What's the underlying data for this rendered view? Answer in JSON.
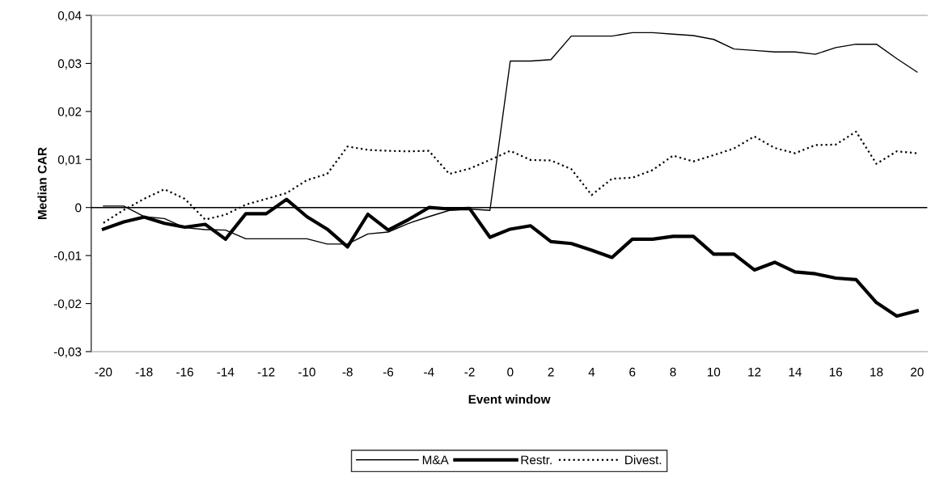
{
  "chart_data": {
    "type": "line",
    "xlabel": "Event window",
    "ylabel": "Median CAR",
    "x": [
      -20,
      -19,
      -18,
      -17,
      -16,
      -15,
      -14,
      -13,
      -12,
      -11,
      -10,
      -9,
      -8,
      -7,
      -6,
      -5,
      -4,
      -3,
      -2,
      -1,
      0,
      1,
      2,
      3,
      4,
      5,
      6,
      7,
      8,
      9,
      10,
      11,
      12,
      13,
      14,
      15,
      16,
      17,
      18,
      19,
      20
    ],
    "series": [
      {
        "name": "M&A",
        "color": "#000000",
        "line_style": "solid",
        "values": [
          0.0003,
          0.0003,
          -0.0019,
          -0.0023,
          -0.0042,
          -0.0046,
          -0.0047,
          -0.0065,
          -0.0065,
          -0.0065,
          -0.0065,
          -0.0076,
          -0.0076,
          -0.0055,
          -0.0051,
          -0.0033,
          -0.0019,
          -0.0006,
          -0.0003,
          -0.0006,
          0.0305,
          0.0305,
          0.0308,
          0.0357,
          0.0357,
          0.0357,
          0.0364,
          0.0364,
          0.0361,
          0.0358,
          0.035,
          0.033,
          0.0327,
          0.0324,
          0.0324,
          0.0319,
          0.0333,
          0.034,
          0.034,
          0.031,
          0.0282
        ]
      },
      {
        "name": "Restr.",
        "color": "#000000",
        "line_style": "solid",
        "values": [
          -0.0045,
          -0.003,
          -0.002,
          -0.0033,
          -0.0041,
          -0.0035,
          -0.0066,
          -0.0013,
          -0.0013,
          0.0017,
          -0.0019,
          -0.0045,
          -0.0082,
          -0.0014,
          -0.0047,
          -0.0025,
          0.0,
          -0.0003,
          -0.0002,
          -0.0062,
          -0.0045,
          -0.0038,
          -0.0071,
          -0.0075,
          -0.0089,
          -0.0104,
          -0.0066,
          -0.0066,
          -0.006,
          -0.006,
          -0.0097,
          -0.0097,
          -0.013,
          -0.0114,
          -0.0134,
          -0.0138,
          -0.0147,
          -0.015,
          -0.0198,
          -0.0226,
          -0.0215
        ]
      },
      {
        "name": "Divest.",
        "color": "#000000",
        "line_style": "dotted",
        "values": [
          -0.0032,
          -0.0005,
          0.0018,
          0.0038,
          0.0018,
          -0.0025,
          -0.0015,
          0.0006,
          0.0018,
          0.003,
          0.0057,
          0.007,
          0.0127,
          0.012,
          0.0118,
          0.0117,
          0.0118,
          0.007,
          0.0081,
          0.0099,
          0.0118,
          0.0099,
          0.0098,
          0.008,
          0.0026,
          0.006,
          0.0062,
          0.0078,
          0.0108,
          0.0096,
          0.0109,
          0.0123,
          0.0148,
          0.0124,
          0.0113,
          0.013,
          0.0131,
          0.0158,
          0.0091,
          0.0117,
          0.0113
        ]
      }
    ],
    "xlim": [
      -20.6,
      20.5
    ],
    "xticks": [
      -20,
      -18,
      -16,
      -14,
      -12,
      -10,
      -8,
      -6,
      -4,
      -2,
      0,
      2,
      4,
      6,
      8,
      10,
      12,
      14,
      16,
      18,
      20
    ],
    "ylim": [
      -0.03,
      0.04
    ],
    "yticks": [
      {
        "value": -0.03,
        "label": "-0,03"
      },
      {
        "value": -0.02,
        "label": "-0,02"
      },
      {
        "value": -0.01,
        "label": "-0,01"
      },
      {
        "value": 0,
        "label": "0"
      },
      {
        "value": 0.01,
        "label": "0,01"
      },
      {
        "value": 0.02,
        "label": "0,02"
      },
      {
        "value": 0.03,
        "label": "0,03"
      },
      {
        "value": 0.04,
        "label": "0,04"
      }
    ],
    "ref_lines": [
      {
        "axis": "y",
        "value": 0,
        "color": "#000000"
      }
    ],
    "grid": false,
    "legend": "bottom",
    "marker": "none"
  }
}
